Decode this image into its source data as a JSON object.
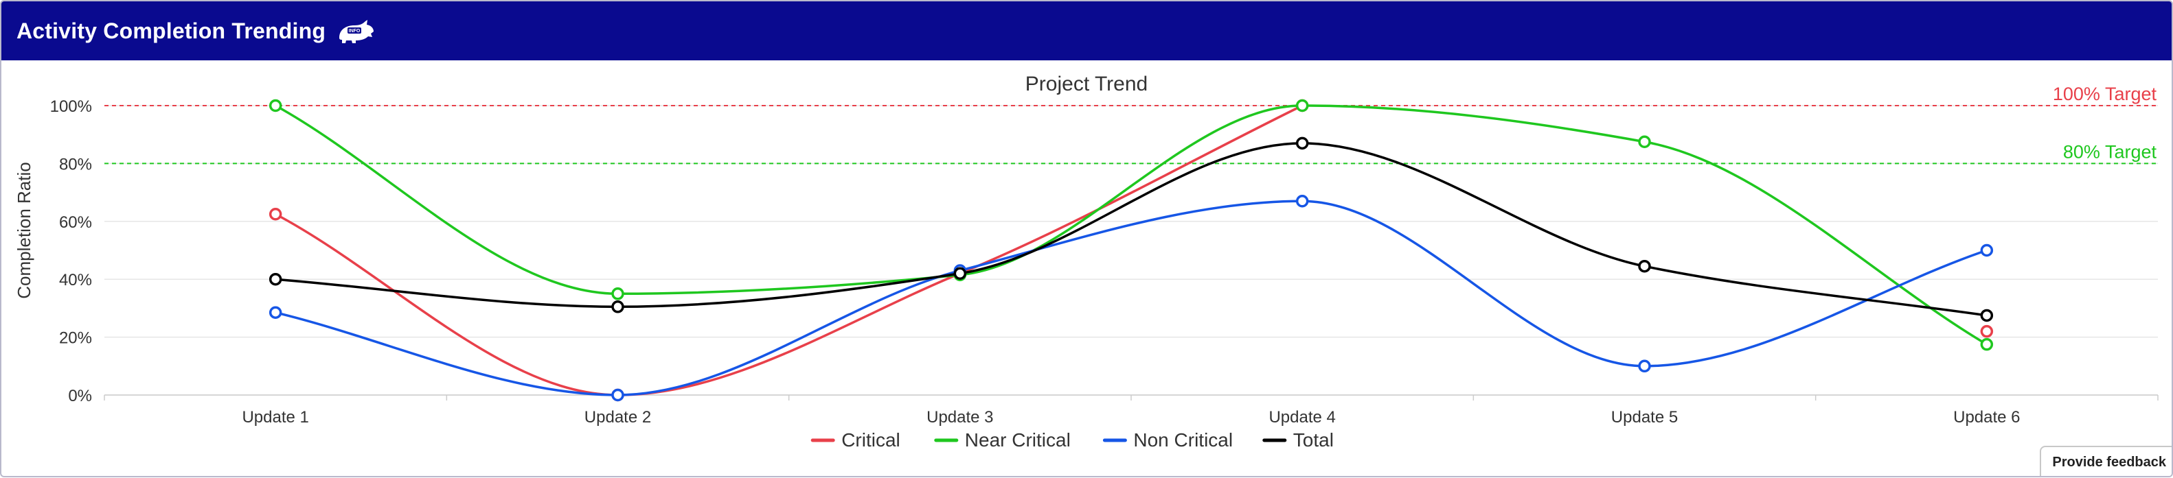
{
  "panel": {
    "title": "Activity Completion Trending",
    "info_badge": "INFO"
  },
  "feedback_label": "Provide feedback",
  "colors": {
    "header": "#0a0a8f",
    "critical": "#e8404a",
    "near_critical": "#1fc71f",
    "non_critical": "#1656e6",
    "total": "#000000"
  },
  "chart_data": {
    "type": "line",
    "title": "Project Trend",
    "xlabel": "",
    "ylabel": "Completion Ratio",
    "categories": [
      "Update 1",
      "Update 2",
      "Update 3",
      "Update 4",
      "Update 5",
      "Update 6"
    ],
    "ylim": [
      0,
      100
    ],
    "yticks": [
      "0%",
      "20%",
      "40%",
      "60%",
      "80%",
      "100%"
    ],
    "grid": true,
    "legend": "bottom",
    "smooth": true,
    "series": [
      {
        "name": "Critical",
        "color": "#e8404a",
        "values": [
          62.5,
          0,
          42,
          100,
          null,
          22
        ]
      },
      {
        "name": "Near Critical",
        "color": "#1fc71f",
        "values": [
          100,
          35,
          41.5,
          100,
          87.5,
          17.5
        ]
      },
      {
        "name": "Non Critical",
        "color": "#1656e6",
        "values": [
          28.5,
          0,
          43,
          67,
          10,
          50
        ]
      },
      {
        "name": "Total",
        "color": "#000000",
        "values": [
          40,
          30.5,
          42,
          87,
          44.5,
          27.5
        ]
      }
    ],
    "reference_lines": [
      {
        "label": "100% Target",
        "value": 100,
        "color": "#e8404a"
      },
      {
        "label": "80% Target",
        "value": 80,
        "color": "#1fc71f"
      }
    ]
  }
}
